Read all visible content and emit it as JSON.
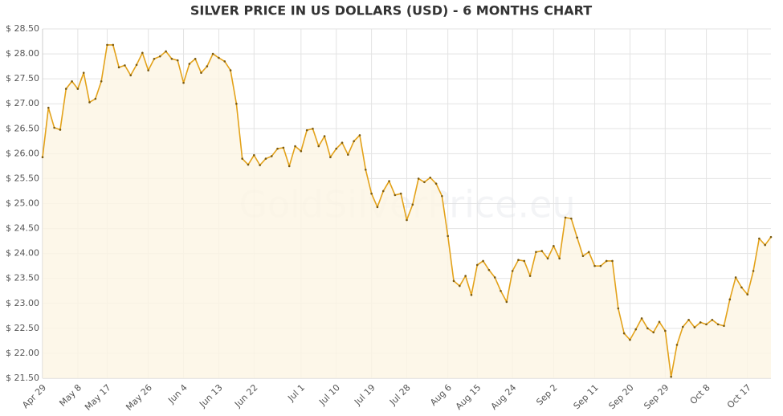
{
  "chart_data": {
    "type": "line",
    "title": "SILVER PRICE IN US DOLLARS (USD) - 6 MONTHS CHART",
    "watermark": "GoldSilverPrice.eu",
    "color": "#e3a21a",
    "area_color": "#fcf5e3",
    "grid": true,
    "categories": [
      "Apr 29",
      null,
      null,
      null,
      null,
      null,
      "May 8",
      null,
      null,
      null,
      null,
      "May 17",
      null,
      null,
      null,
      null,
      null,
      null,
      "May 26",
      null,
      null,
      null,
      null,
      null,
      "Jun 4",
      null,
      null,
      null,
      null,
      null,
      "Jun 13",
      null,
      null,
      null,
      null,
      null,
      "Jun 22",
      null,
      null,
      null,
      null,
      null,
      null,
      null,
      "Jul 1",
      null,
      null,
      null,
      null,
      null,
      "Jul 10",
      null,
      null,
      null,
      null,
      null,
      "Jul 19",
      null,
      null,
      null,
      null,
      null,
      "Jul 28",
      null,
      null,
      null,
      null,
      null,
      null,
      "Aug 6",
      null,
      null,
      null,
      null,
      "Aug 15",
      null,
      null,
      null,
      null,
      null,
      "Aug 24",
      null,
      null,
      null,
      null,
      null,
      null,
      "Sep 2",
      null,
      null,
      null,
      null,
      null,
      null,
      "Sep 11",
      null,
      null,
      null,
      null,
      null,
      "Sep 20",
      null,
      null,
      null,
      null,
      null,
      "Sep 29",
      null,
      null,
      null,
      null,
      null,
      null,
      "Oct 8",
      null,
      null,
      null,
      null,
      null,
      null,
      "Oct 17",
      null,
      null,
      null,
      null
    ],
    "values": [
      25.93,
      26.92,
      26.52,
      26.48,
      27.3,
      27.45,
      27.3,
      27.62,
      27.03,
      27.1,
      27.45,
      28.18,
      28.18,
      27.73,
      27.77,
      27.57,
      27.78,
      28.02,
      27.67,
      27.9,
      27.95,
      28.05,
      27.9,
      27.87,
      27.42,
      27.8,
      27.9,
      27.62,
      27.75,
      28.0,
      27.92,
      27.85,
      27.67,
      27.0,
      25.9,
      25.78,
      25.97,
      25.77,
      25.9,
      25.95,
      26.1,
      26.12,
      25.75,
      26.15,
      26.05,
      26.47,
      26.5,
      26.15,
      26.35,
      25.93,
      26.1,
      26.22,
      25.98,
      26.25,
      26.37,
      25.68,
      25.2,
      24.93,
      25.25,
      25.45,
      25.17,
      25.2,
      24.67,
      24.98,
      25.5,
      25.43,
      25.52,
      25.4,
      25.15,
      24.35,
      23.45,
      23.35,
      23.55,
      23.17,
      23.77,
      23.85,
      23.67,
      23.52,
      23.25,
      23.03,
      23.65,
      23.87,
      23.85,
      23.55,
      24.03,
      24.05,
      23.9,
      24.15,
      23.9,
      24.72,
      24.7,
      24.32,
      23.95,
      24.03,
      23.75,
      23.75,
      23.85,
      23.85,
      22.9,
      22.4,
      22.27,
      22.48,
      22.7,
      22.5,
      22.42,
      22.63,
      22.45,
      21.53,
      22.17,
      22.53,
      22.67,
      22.52,
      22.62,
      22.58,
      22.67,
      22.58,
      22.55,
      23.08,
      23.52,
      23.32,
      23.18,
      23.65,
      24.3,
      24.17,
      24.33
    ],
    "ylim": [
      21.5,
      28.5
    ],
    "yticks": [
      {
        "value": 21.5,
        "label": "$ 21.50"
      },
      {
        "value": 22,
        "label": "$ 22.00"
      },
      {
        "value": 22.5,
        "label": "$ 22.50"
      },
      {
        "value": 23,
        "label": "$ 23.00"
      },
      {
        "value": 23.5,
        "label": "$ 23.50"
      },
      {
        "value": 24,
        "label": "$ 24.00"
      },
      {
        "value": 24.5,
        "label": "$ 24.50"
      },
      {
        "value": 25,
        "label": "$ 25.00"
      },
      {
        "value": 25.5,
        "label": "$ 25.50"
      },
      {
        "value": 26,
        "label": "$ 26.00"
      },
      {
        "value": 26.5,
        "label": "$ 26.50"
      },
      {
        "value": 27,
        "label": "$ 27.00"
      },
      {
        "value": 27.5,
        "label": "$ 27.50"
      },
      {
        "value": 28,
        "label": "$ 28.00"
      },
      {
        "value": 28.5,
        "label": "$ 28.50"
      }
    ]
  }
}
